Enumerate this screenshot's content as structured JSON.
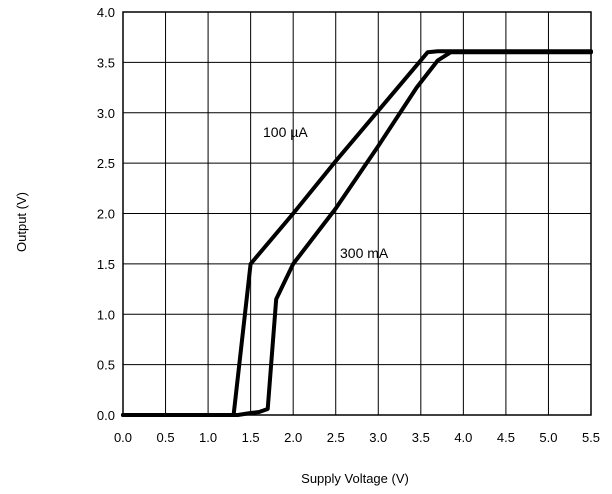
{
  "chart_data": {
    "type": "line",
    "xlabel": "Supply Voltage (V)",
    "ylabel": "Output (V)",
    "xlim": [
      0.0,
      5.5
    ],
    "ylim": [
      0.0,
      4.0
    ],
    "xticks": [
      "0.0",
      "0.5",
      "1.0",
      "1.5",
      "2.0",
      "2.5",
      "3.0",
      "3.5",
      "4.0",
      "4.5",
      "5.0",
      "5.5"
    ],
    "yticks": [
      "0.0",
      "0.5",
      "1.0",
      "1.5",
      "2.0",
      "2.5",
      "3.0",
      "3.5",
      "4.0"
    ],
    "grid": true,
    "series": [
      {
        "name": "100 µA",
        "x": [
          0.0,
          1.3,
          1.5,
          2.0,
          2.5,
          3.0,
          3.58,
          3.7,
          5.5
        ],
        "y": [
          0.0,
          0.0,
          1.5,
          2.0,
          2.52,
          3.02,
          3.6,
          3.61,
          3.61
        ]
      },
      {
        "name": "300 mA",
        "x": [
          0.0,
          1.35,
          1.5,
          1.6,
          1.7,
          1.8,
          2.0,
          2.5,
          3.0,
          3.45,
          3.7,
          3.85,
          5.5
        ],
        "y": [
          0.0,
          0.0,
          0.02,
          0.03,
          0.06,
          1.15,
          1.5,
          2.05,
          2.67,
          3.25,
          3.52,
          3.6,
          3.6
        ]
      }
    ]
  }
}
